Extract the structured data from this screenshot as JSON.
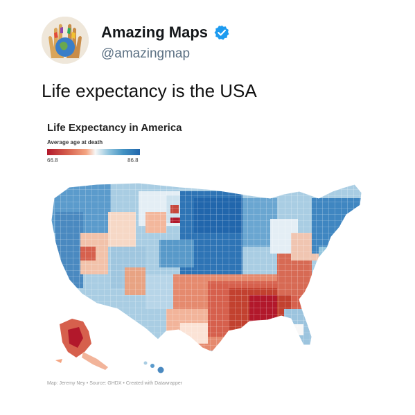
{
  "account": {
    "display_name": "Amazing Maps",
    "handle": "@amazingmap",
    "verified": true,
    "verified_icon": "verified-badge-icon",
    "verified_color": "#1d9bf0"
  },
  "tweet": {
    "text": "Life expectancy is the USA"
  },
  "map": {
    "title": "Life Expectancy in America",
    "legend": {
      "label": "Average age at death",
      "min_label": "66.8",
      "max_label": "86.8",
      "min": 66.8,
      "max": 86.8,
      "low_color": "#b2182b",
      "mid_color": "#f7f7f7",
      "high_color": "#2166ac"
    },
    "credits": "Map: Jeremy Ney • Source: GHDX • Created with Datawrapper"
  }
}
